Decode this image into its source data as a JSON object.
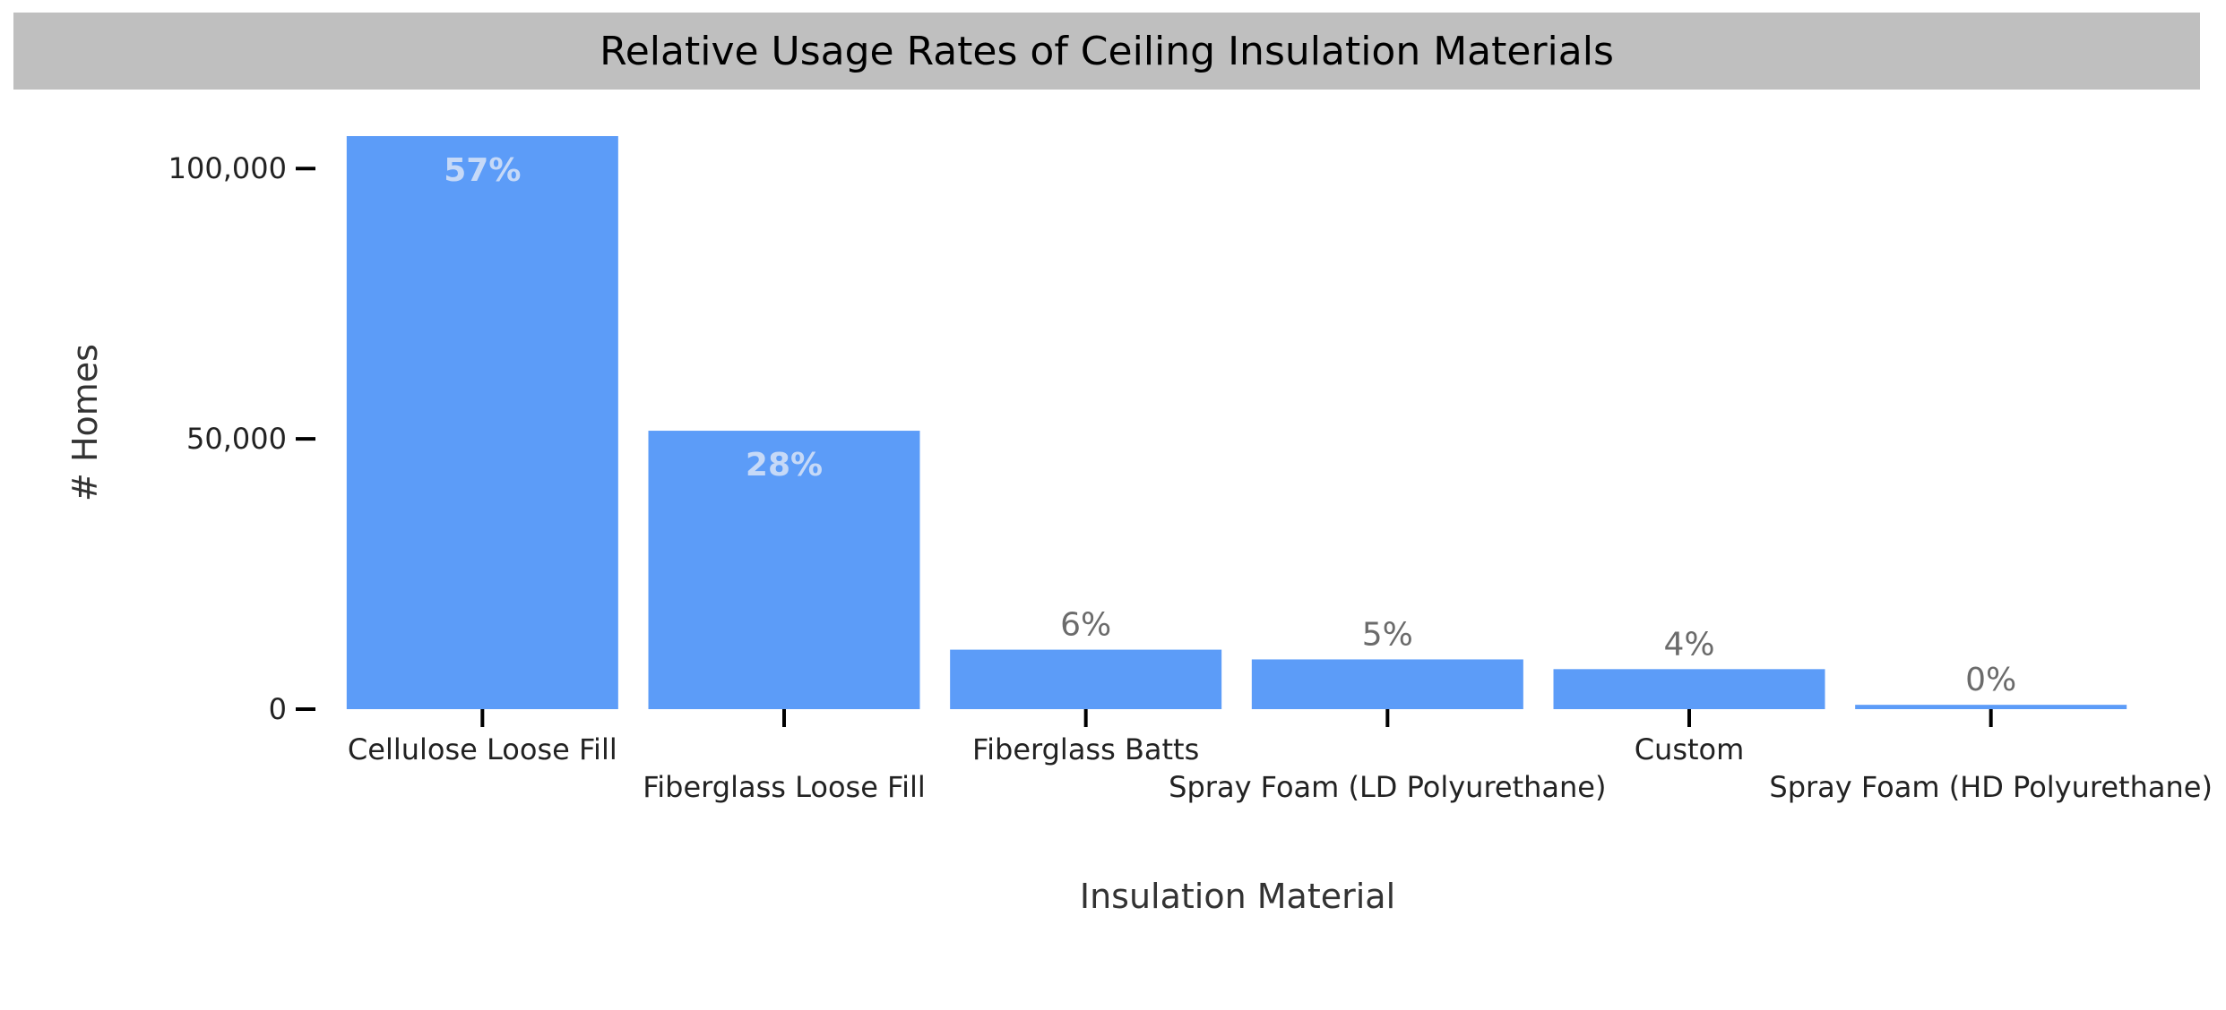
{
  "chart_data": {
    "type": "bar",
    "title": "Relative Usage Rates of Ceiling Insulation Materials",
    "xlabel": "Insulation Material",
    "ylabel": "# Homes",
    "categories": [
      "Cellulose Loose Fill",
      "Fiberglass Loose Fill",
      "Fiberglass Batts",
      "Spray Foam (LD Polyurethane)",
      "Custom",
      "Spray Foam (HD Polyurethane)"
    ],
    "values": [
      106000,
      51500,
      11000,
      9200,
      7400,
      800
    ],
    "data_labels": [
      "57%",
      "28%",
      "6%",
      "5%",
      "4%",
      "0%"
    ],
    "yticks": [
      0,
      50000,
      100000
    ],
    "ytick_labels": [
      "0",
      "50,000",
      "100,000"
    ],
    "ylim": [
      0,
      106000
    ],
    "grid": false,
    "legend": "none",
    "colors": {
      "bar": "#5c9cf8",
      "label_inside": "#c6d9f7",
      "label_outside": "#6b6b6b",
      "title_bg": "#bfbfbf",
      "axis": "#000000"
    }
  }
}
